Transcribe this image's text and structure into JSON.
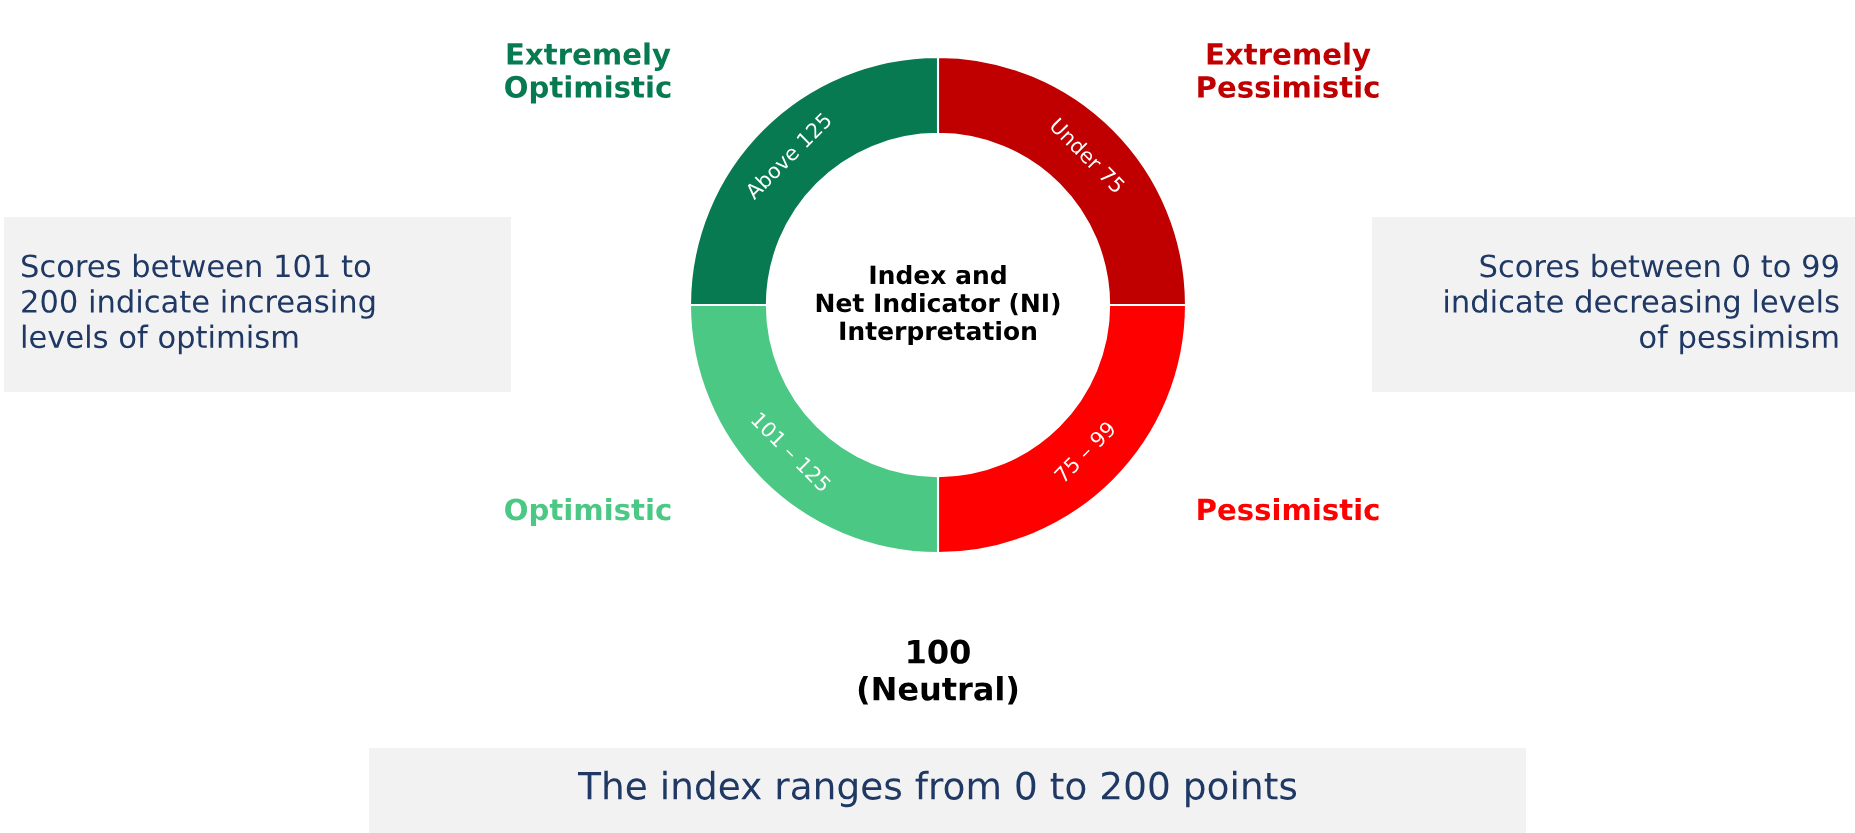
{
  "chart_data": {
    "type": "donut",
    "title": "Index and\nNet Indicator (NI)\nInterpretation",
    "categories": [
      "Extremely\nPessimistic",
      "Pessimistic",
      "Optimistic",
      "Extremely\nOptimistic"
    ],
    "values": [
      25,
      25,
      25,
      25
    ],
    "colors": [
      "#c00000",
      "#ff0000",
      "#4bc884",
      "#077a52"
    ],
    "annotations": [
      "Under 75",
      "75 – 99",
      "101 – 125",
      "Above 125",
      "100\n(Neutral)",
      "Scores between 101 to\n200 indicate increasing\nlevels of optimism",
      "Scores between 0 to 99\nindicate decreasing levels\nof pessimism",
      "The index ranges from 0 to 200 points"
    ]
  }
}
